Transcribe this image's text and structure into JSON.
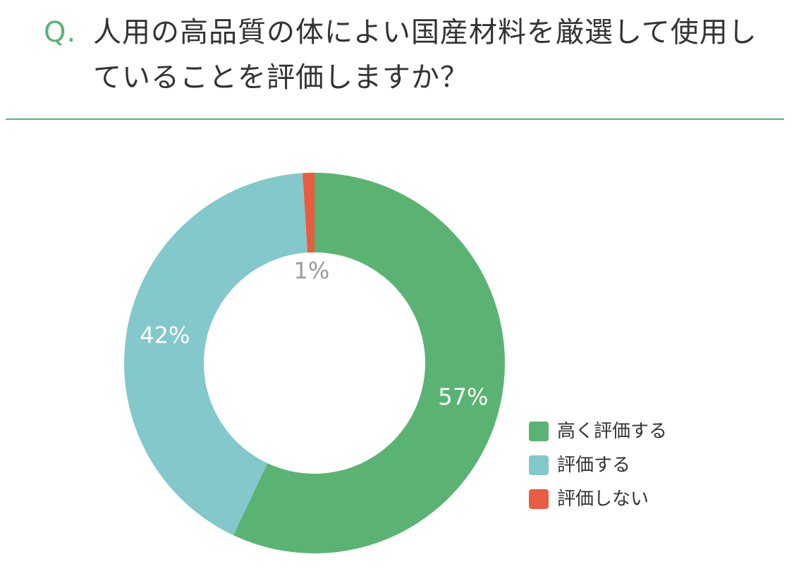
{
  "question": {
    "prefix": "Q.",
    "text": "人用の高品質の体によい国産材料を厳選して使用していることを評価しますか？"
  },
  "colors": {
    "accent": "#5bb373",
    "divider": "#5bb373",
    "high": "#5bb373",
    "mid": "#83c8cb",
    "low": "#e85c41",
    "inside_label": "#999999"
  },
  "chart_data": {
    "type": "pie",
    "donut": true,
    "title": "",
    "legend_position": "right-bottom",
    "slices": [
      {
        "name": "高く評価する",
        "value": 57,
        "label": "57%",
        "color": "#5bb373"
      },
      {
        "name": "評価する",
        "value": 42,
        "label": "42%",
        "color": "#83c8cb"
      },
      {
        "name": "評価しない",
        "value": 1,
        "label": "1%",
        "color": "#e85c41"
      }
    ]
  },
  "legend": [
    {
      "label": "高く評価する",
      "color": "#5bb373"
    },
    {
      "label": "評価する",
      "color": "#83c8cb"
    },
    {
      "label": "評価しない",
      "color": "#e85c41"
    }
  ]
}
